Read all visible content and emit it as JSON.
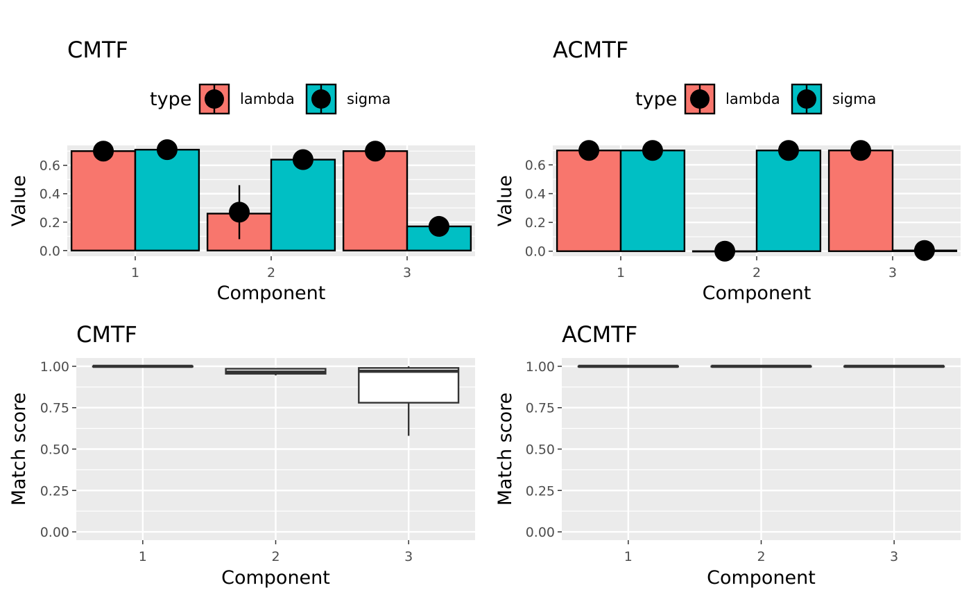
{
  "colors": {
    "lambda": "#F8766D",
    "sigma": "#00BFC4",
    "panel_bg": "#EBEBEB",
    "grid": "#FFFFFF",
    "ink": "#000000",
    "box_line": "#333333"
  },
  "chart_data": [
    {
      "type": "bar",
      "title": "CMTF",
      "xlabel": "Component",
      "ylabel": "Value",
      "categories": [
        "1",
        "2",
        "3"
      ],
      "yticks": [
        "0.0",
        "0.2",
        "0.4",
        "0.6"
      ],
      "ylim": [
        -0.04,
        0.74
      ],
      "legend": {
        "title": "type",
        "position": "top",
        "entries": [
          "lambda",
          "sigma"
        ]
      },
      "series": [
        {
          "name": "lambda",
          "values": [
            0.7,
            0.26,
            0.7
          ],
          "point": [
            0.7,
            0.27,
            0.7
          ],
          "err_low": [
            null,
            0.08,
            null
          ],
          "err_high": [
            null,
            0.46,
            null
          ]
        },
        {
          "name": "sigma",
          "values": [
            0.71,
            0.64,
            0.17
          ],
          "point": [
            0.71,
            0.64,
            0.17
          ],
          "err_low": [
            null,
            null,
            null
          ],
          "err_high": [
            null,
            null,
            null
          ]
        }
      ]
    },
    {
      "type": "bar",
      "title": "ACMTF",
      "xlabel": "Component",
      "ylabel": "Value",
      "categories": [
        "1",
        "2",
        "3"
      ],
      "yticks": [
        "0.0",
        "0.2",
        "0.4",
        "0.6"
      ],
      "ylim": [
        -0.035,
        0.735
      ],
      "legend": {
        "title": "type",
        "position": "top",
        "entries": [
          "lambda",
          "sigma"
        ]
      },
      "series": [
        {
          "name": "lambda",
          "values": [
            0.7,
            0.0,
            0.7
          ],
          "point": [
            0.7,
            0.0,
            0.7
          ],
          "err_low": [
            null,
            null,
            null
          ],
          "err_high": [
            null,
            null,
            null
          ]
        },
        {
          "name": "sigma",
          "values": [
            0.7,
            0.7,
            0.005
          ],
          "point": [
            0.7,
            0.7,
            0.005
          ],
          "err_low": [
            null,
            null,
            null
          ],
          "err_high": [
            null,
            null,
            null
          ]
        }
      ]
    },
    {
      "type": "box",
      "title": "CMTF",
      "xlabel": "Component",
      "ylabel": "Match score",
      "categories": [
        "1",
        "2",
        "3"
      ],
      "yticks": [
        "0.00",
        "0.25",
        "0.50",
        "0.75",
        "1.00"
      ],
      "ylim": [
        -0.05,
        1.05
      ],
      "boxes": [
        {
          "lower_whisker": 1.0,
          "q1": 1.0,
          "median": 1.0,
          "q3": 1.0,
          "upper_whisker": 1.0
        },
        {
          "lower_whisker": 0.945,
          "q1": 0.955,
          "median": 0.965,
          "q3": 0.985,
          "upper_whisker": 0.985
        },
        {
          "lower_whisker": 0.58,
          "q1": 0.78,
          "median": 0.97,
          "q3": 0.99,
          "upper_whisker": 1.0
        }
      ]
    },
    {
      "type": "box",
      "title": "ACMTF",
      "xlabel": "Component",
      "ylabel": "Match score",
      "categories": [
        "1",
        "2",
        "3"
      ],
      "yticks": [
        "0.00",
        "0.25",
        "0.50",
        "0.75",
        "1.00"
      ],
      "ylim": [
        -0.05,
        1.05
      ],
      "boxes": [
        {
          "lower_whisker": 1.0,
          "q1": 1.0,
          "median": 1.0,
          "q3": 1.0,
          "upper_whisker": 1.0
        },
        {
          "lower_whisker": 1.0,
          "q1": 1.0,
          "median": 1.0,
          "q3": 1.0,
          "upper_whisker": 1.0
        },
        {
          "lower_whisker": 1.0,
          "q1": 1.0,
          "median": 1.0,
          "q3": 1.0,
          "upper_whisker": 1.0
        }
      ]
    }
  ]
}
